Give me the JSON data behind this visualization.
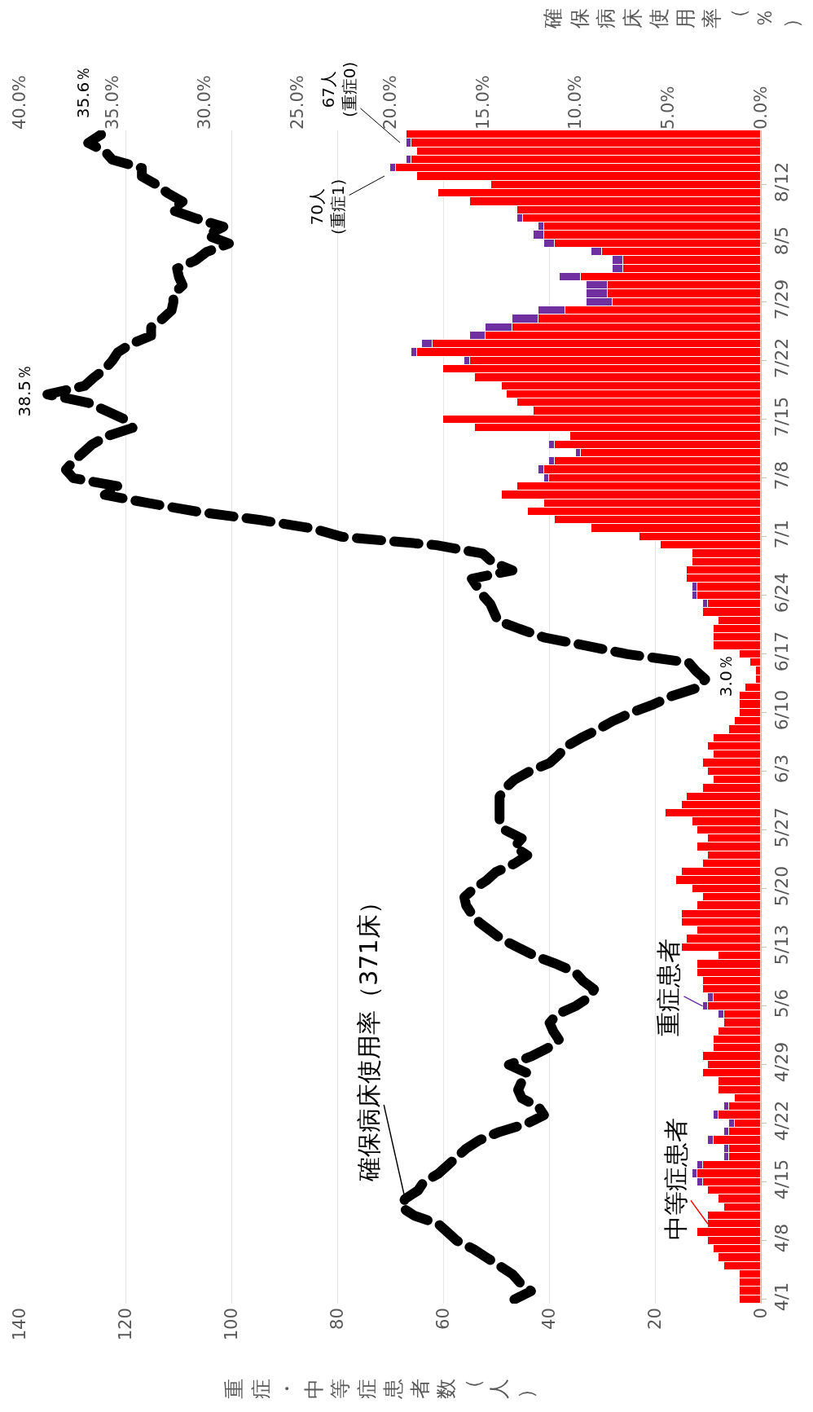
{
  "chart_data": {
    "type": "bar",
    "orientation": "horizontal",
    "stacked": true,
    "grid": "x",
    "xlabel": "重症・中等症患者数（人）",
    "x2label": "確保病床使用率（％）",
    "categories": [
      null,
      null,
      null,
      null,
      null,
      null,
      "8/12",
      null,
      null,
      null,
      null,
      null,
      null,
      "8/5",
      null,
      null,
      null,
      null,
      null,
      null,
      "7/29",
      null,
      null,
      null,
      null,
      null,
      null,
      "7/22",
      null,
      null,
      null,
      null,
      null,
      null,
      "7/15",
      null,
      null,
      null,
      null,
      null,
      null,
      "7/8",
      null,
      null,
      null,
      null,
      null,
      null,
      "7/1",
      null,
      null,
      null,
      null,
      null,
      null,
      "6/24",
      null,
      null,
      null,
      null,
      null,
      null,
      "6/17",
      null,
      null,
      null,
      null,
      null,
      null,
      "6/10",
      null,
      null,
      null,
      null,
      null,
      null,
      "6/3",
      null,
      null,
      null,
      null,
      null,
      null,
      "5/27",
      null,
      null,
      null,
      null,
      null,
      null,
      "5/20",
      null,
      null,
      null,
      null,
      null,
      null,
      "5/13",
      null,
      null,
      null,
      null,
      null,
      null,
      "5/6",
      null,
      null,
      null,
      null,
      null,
      null,
      "4/29",
      null,
      null,
      null,
      null,
      null,
      null,
      "4/22",
      null,
      null,
      null,
      null,
      null,
      null,
      "4/15",
      null,
      null,
      null,
      null,
      null,
      null,
      "4/8",
      null,
      null,
      null,
      null,
      null,
      null,
      "4/1"
    ],
    "xlim": [
      140,
      0
    ],
    "xticks": [
      0,
      20,
      40,
      60,
      80,
      100,
      120,
      140
    ],
    "x2lim": [
      40,
      0
    ],
    "x2ticks": [
      {
        "value": 0,
        "label": "0.0%"
      },
      {
        "value": 5,
        "label": "5.0%"
      },
      {
        "value": 10,
        "label": "10.0%"
      },
      {
        "value": 15,
        "label": "15.0%"
      },
      {
        "value": 20,
        "label": "20.0%"
      },
      {
        "value": 25,
        "label": "25.0%"
      },
      {
        "value": 30,
        "label": "30.0%"
      },
      {
        "value": 35,
        "label": "35.0%"
      },
      {
        "value": 40,
        "label": "40.0%"
      }
    ],
    "series": [
      {
        "name": "中等症患者",
        "color": "#ff0000",
        "values": [
          67,
          66,
          65,
          66,
          69,
          65,
          51,
          61,
          55,
          46,
          45,
          41,
          41,
          39,
          30,
          26,
          26,
          34,
          29,
          29,
          28,
          37,
          42,
          47,
          52,
          62,
          65,
          55,
          60,
          54,
          49,
          48,
          46,
          43,
          60,
          54,
          36,
          39,
          34,
          39,
          41,
          40,
          46,
          49,
          41,
          44,
          39,
          32,
          23,
          19,
          13,
          13,
          14,
          14,
          12,
          12,
          10,
          11,
          8,
          9,
          9,
          9,
          4,
          2,
          1,
          1,
          3,
          4,
          4,
          4,
          5,
          6,
          9,
          10,
          9,
          11,
          10,
          9,
          11,
          14,
          15,
          18,
          13,
          12,
          10,
          12,
          10,
          11,
          15,
          16,
          13,
          11,
          12,
          15,
          15,
          12,
          14,
          15,
          8,
          12,
          12,
          11,
          11,
          9,
          10,
          7,
          7,
          8,
          9,
          9,
          11,
          10,
          11,
          8,
          8,
          5,
          6,
          8,
          5,
          6,
          9,
          6,
          6,
          11,
          12,
          11,
          10,
          8,
          7,
          10,
          10,
          12,
          10,
          9,
          8,
          7,
          4,
          4,
          4,
          4
        ]
      },
      {
        "name": "重症患者",
        "color": "#7030a0",
        "values": [
          0,
          1,
          0,
          1,
          1,
          0,
          0,
          0,
          0,
          0,
          1,
          1,
          2,
          2,
          2,
          2,
          2,
          4,
          4,
          4,
          5,
          5,
          5,
          5,
          3,
          2,
          1,
          1,
          0,
          0,
          0,
          0,
          0,
          0,
          0,
          0,
          0,
          1,
          1,
          1,
          1,
          1,
          0,
          0,
          0,
          0,
          0,
          0,
          0,
          0,
          0,
          0,
          0,
          0,
          1,
          1,
          1,
          0,
          0,
          0,
          0,
          0,
          0,
          0,
          0,
          0,
          0,
          0,
          0,
          0,
          0,
          0,
          0,
          0,
          0,
          0,
          0,
          0,
          0,
          0,
          0,
          0,
          0,
          0,
          0,
          0,
          0,
          0,
          0,
          0,
          0,
          0,
          0,
          0,
          0,
          0,
          0,
          0,
          0,
          0,
          0,
          0,
          0,
          1,
          1,
          1,
          0,
          0,
          0,
          0,
          0,
          0,
          0,
          0,
          0,
          0,
          1,
          1,
          1,
          1,
          1,
          1,
          1,
          1,
          1,
          1,
          0,
          0,
          0,
          0,
          0,
          0,
          0,
          0,
          0,
          0,
          0,
          0,
          0,
          0
        ]
      },
      {
        "name": "確保病床使用率（371床）",
        "type": "line",
        "axis": "x2",
        "color": "#000000",
        "line_style": "dashed",
        "values": [
          35.6,
          36.3,
          35.4,
          35.0,
          33.4,
          33.4,
          32.6,
          32.0,
          31.2,
          31.8,
          30.5,
          29.0,
          29.9,
          28.7,
          29.9,
          30.5,
          31.5,
          31.4,
          31.2,
          31.7,
          31.7,
          31.8,
          32.3,
          32.9,
          32.9,
          34.0,
          34.7,
          35.0,
          35.4,
          36.0,
          36.5,
          38.5,
          36.3,
          35.3,
          34.3,
          33.9,
          35.3,
          36.1,
          36.6,
          37.1,
          37.5,
          37.1,
          34.6,
          35.4,
          33.0,
          30.4,
          27.0,
          24.2,
          22.6,
          17.5,
          15.0,
          14.5,
          13.4,
          15.6,
          15.3,
          15.0,
          14.6,
          14.4,
          14.2,
          13.0,
          11.7,
          9.4,
          7.2,
          3.9,
          3.5,
          3.0,
          3.4,
          4.8,
          5.8,
          7.0,
          8.0,
          8.8,
          9.7,
          10.5,
          10.9,
          11.4,
          12.5,
          13.3,
          13.8,
          14.1,
          14.1,
          14.1,
          14.1,
          13.8,
          12.9,
          13.3,
          12.6,
          13.3,
          14.3,
          14.8,
          15.5,
          16.0,
          15.9,
          15.6,
          15.2,
          14.6,
          14.0,
          13.1,
          12.2,
          11.0,
          10.0,
          9.6,
          9.0,
          9.3,
          10.0,
          11.0,
          11.4,
          11.2,
          10.9,
          11.5,
          12.4,
          13.6,
          12.6,
          12.9,
          13.1,
          12.9,
          12.0,
          11.7,
          12.6,
          14.1,
          15.2,
          15.9,
          16.4,
          16.9,
          17.4,
          18.2,
          18.5,
          19.2,
          19.4,
          18.7,
          17.4,
          16.9,
          16.4,
          15.5,
          14.8,
          14.1,
          13.4,
          13.0,
          12.4,
          13.3
        ]
      }
    ],
    "annotations": [
      "38.5％",
      "35.6％",
      "3.0％",
      "67人\n(重症0)",
      "70人\n(重症1)"
    ]
  }
}
